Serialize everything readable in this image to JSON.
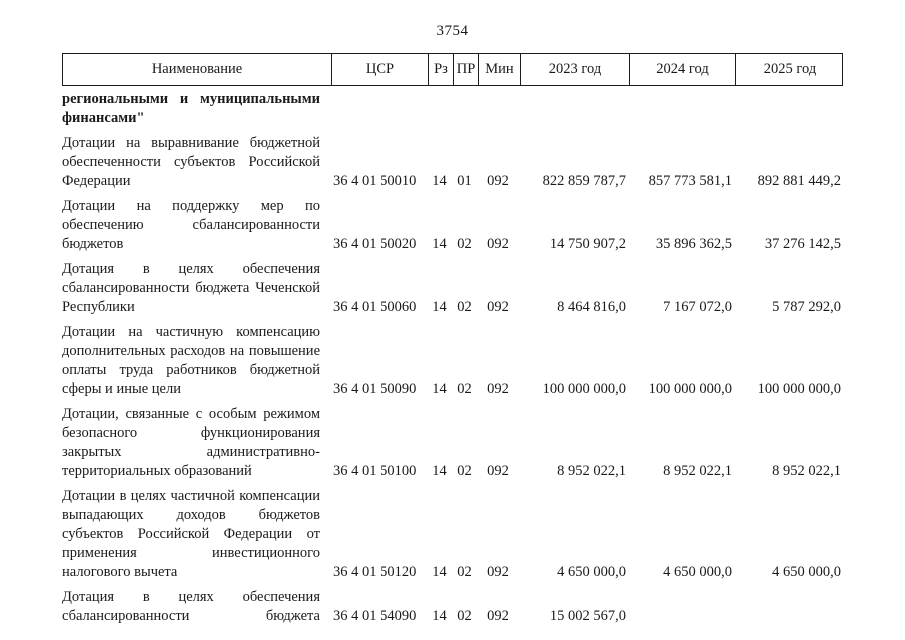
{
  "page": {
    "number": "3754"
  },
  "table": {
    "headers": {
      "name": "Наименование",
      "csr": "ЦСР",
      "rz": "Рз",
      "pr": "ПР",
      "min": "Мин",
      "y2023": "2023 год",
      "y2024": "2024 год",
      "y2025": "2025 год"
    },
    "rows": [
      {
        "name": "региональными и муниципальными финансами\""
      },
      {
        "name": "Дотации на выравнивание бюджетной обеспеченности субъектов Российской Федерации",
        "csr": "36 4 01 50010",
        "rz": "14",
        "pr": "01",
        "min": "092",
        "y2023": "822 859 787,7",
        "y2024": "857 773 581,1",
        "y2025": "892 881 449,2"
      },
      {
        "name": "Дотации на поддержку мер по обеспечению сбалансированности бюджетов",
        "csr": "36 4 01 50020",
        "rz": "14",
        "pr": "02",
        "min": "092",
        "y2023": "14 750 907,2",
        "y2024": "35 896 362,5",
        "y2025": "37 276 142,5"
      },
      {
        "name": "Дотация в целях обеспечения сбалансированности бюджета Чеченской Республики",
        "csr": "36 4 01 50060",
        "rz": "14",
        "pr": "02",
        "min": "092",
        "y2023": "8 464 816,0",
        "y2024": "7 167 072,0",
        "y2025": "5 787 292,0"
      },
      {
        "name": "Дотации на частичную компенсацию дополнительных расходов на повышение оплаты труда работников бюджетной сферы и иные цели",
        "csr": "36 4 01 50090",
        "rz": "14",
        "pr": "02",
        "min": "092",
        "y2023": "100 000 000,0",
        "y2024": "100 000 000,0",
        "y2025": "100 000 000,0"
      },
      {
        "name": "Дотации, связанные с особым режимом безопасного функционирования закрытых административно-территориальных образований",
        "csr": "36 4 01 50100",
        "rz": "14",
        "pr": "02",
        "min": "092",
        "y2023": "8 952 022,1",
        "y2024": "8 952 022,1",
        "y2025": "8 952 022,1"
      },
      {
        "name": "Дотации в целях частичной компенсации выпадающих доходов бюджетов субъектов Российской Федерации от применения инвестиционного налогового вычета",
        "csr": "36 4 01 50120",
        "rz": "14",
        "pr": "02",
        "min": "092",
        "y2023": "4 650 000,0",
        "y2024": "4 650 000,0",
        "y2025": "4 650 000,0"
      },
      {
        "name": "Дотация в целях обеспечения сбалансированности бюджета",
        "csr": "36 4 01 54090",
        "rz": "14",
        "pr": "02",
        "min": "092",
        "y2023": "15 002 567,0",
        "y2024": "",
        "y2025": ""
      }
    ]
  }
}
